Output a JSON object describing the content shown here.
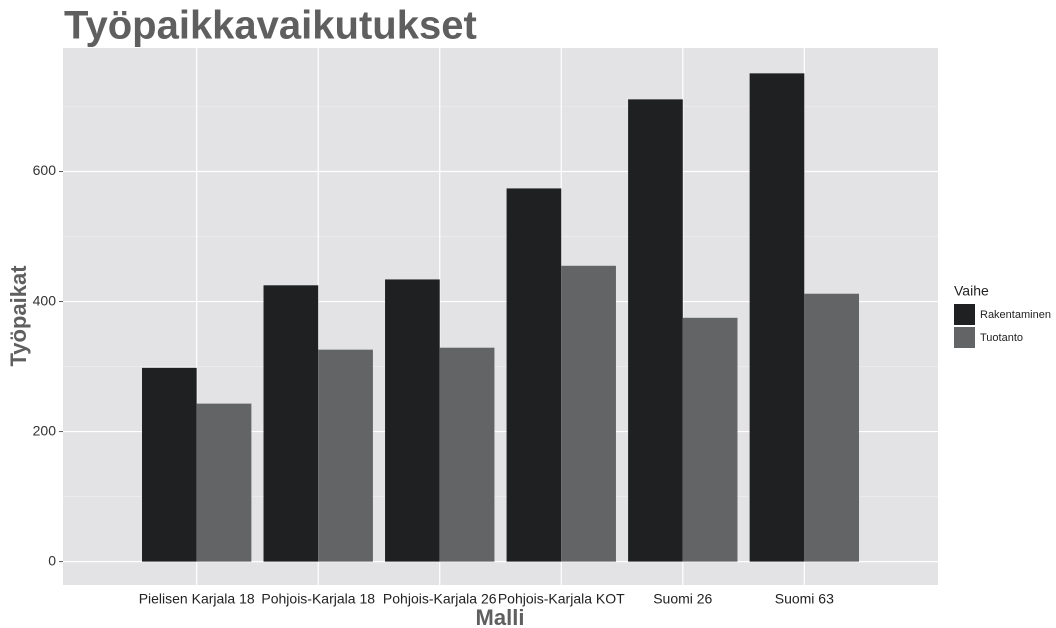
{
  "chart_data": {
    "type": "bar",
    "title": "Työpaikkavaikutukset",
    "x_label": "Malli",
    "y_label": "Työpaikat",
    "legend_title": "Vaihe",
    "legend_position": "right",
    "categories": [
      "Pielisen Karjala 18",
      "Pohjois-Karjala 18",
      "Pohjois-Karjala 26",
      "Pohjois-Karjala KOT",
      "Suomi 26",
      "Suomi 63"
    ],
    "series": [
      {
        "name": "Rakentaminen",
        "color": "#1f2022",
        "values": [
          298,
          425,
          434,
          574,
          711,
          751
        ]
      },
      {
        "name": "Tuotanto",
        "color": "#636466",
        "values": [
          243,
          326,
          329,
          455,
          375,
          412
        ]
      }
    ],
    "ylim": [
      -36,
      790
    ],
    "yticks": [
      0,
      200,
      400,
      600
    ],
    "yminor": [
      100,
      300,
      500,
      700
    ],
    "grid": true
  }
}
